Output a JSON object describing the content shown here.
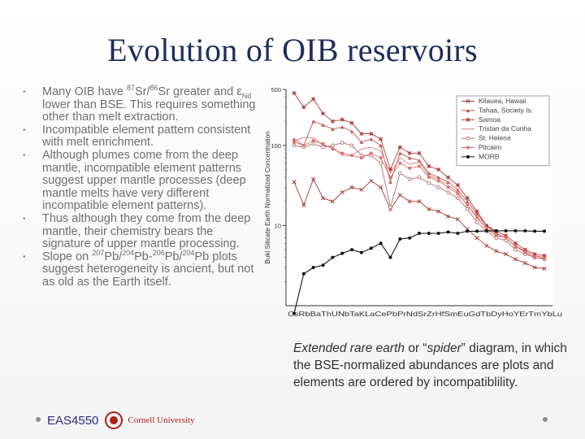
{
  "slide": {
    "title": "Evolution of OIB reservoirs",
    "bullets": [
      {
        "pre": "Many OIB have ",
        "sup1": "87",
        "mid1": "Sr/",
        "sup2": "86",
        "mid2": "Sr greater and ε",
        "sub": "Nd",
        "post": " lower than BSE. This requires something other than melt extraction."
      },
      {
        "text": "Incompatible element pattern consistent with melt enrichment."
      },
      {
        "text": "Although plumes come from the deep mantle, incompatible element patterns suggest upper mantle processes (deep mantle melts have very different incompatible element patterns)."
      },
      {
        "text": "Thus although they come from the deep mantle, their chemistry bears the signature of upper mantle processing."
      },
      {
        "pre": "Slope on ",
        "sup1": "207",
        "mid1": "Pb/",
        "sup2": "204",
        "mid2": "Pb-",
        "sup3": "206",
        "mid3": "Pb/",
        "sup4": "204",
        "post": "Pb plots suggest heterogeneity is ancient, but not as old as the Earth itself."
      }
    ],
    "caption": {
      "part1": "Extended rare earth",
      "part2": " or “",
      "part3": "spider",
      "part4": "” diagram, in which the BSE-normalized abundances are plots and elements are ordered by incompatiblility."
    },
    "footer": {
      "course": "EAS4550",
      "university": "Cornell University"
    }
  },
  "chart_data": {
    "type": "line",
    "ylabel": "Bukl Silicate Earth Normalized Concentration",
    "yscale": "log",
    "ylim": [
      1,
      500
    ],
    "yticks": [
      {
        "value": 500,
        "label": "500"
      },
      {
        "value": 100,
        "label": "100"
      },
      {
        "value": 10,
        "label": "10"
      }
    ],
    "categories": [
      "Cs",
      "Rb",
      "Ba",
      "Th",
      "U",
      "Nb",
      "Ta",
      "K",
      "La",
      "Ce",
      "Pb",
      "Pr",
      "Nd",
      "Sr",
      "Zr",
      "Hf",
      "Sm",
      "Eu",
      "Gd",
      "Tb",
      "Dy",
      "Ho",
      "Y",
      "Er",
      "Tm",
      "Yb",
      "Lu"
    ],
    "xtick_text": "CsRbBaThUNbTaKLaCePbPrNdSrZrHfSmEuGdTbDyHoYErTmYbLu",
    "legend_position": "top-right",
    "series": [
      {
        "name": "Kilauea, Hawaii",
        "color": "#a83838",
        "marker": "x",
        "values": [
          35,
          18,
          38,
          22,
          20,
          26,
          30,
          28,
          36,
          30,
          16,
          24,
          20,
          20,
          16,
          15,
          13,
          12,
          9,
          7,
          5.6,
          4.8,
          4.4,
          3.8,
          3.4,
          3.0,
          2.9
        ]
      },
      {
        "name": "Tahaa, Society Is.",
        "color": "#c45555",
        "marker": "triangle",
        "values": [
          120,
          100,
          200,
          180,
          160,
          170,
          150,
          110,
          120,
          100,
          35,
          80,
          70,
          65,
          45,
          40,
          35,
          28,
          20,
          14,
          10,
          8,
          7,
          5.5,
          4.8,
          4.2,
          4.0
        ]
      },
      {
        "name": "Samoa",
        "color": "#b23a3a",
        "marker": "asterisk",
        "values": [
          450,
          300,
          380,
          250,
          200,
          210,
          190,
          140,
          140,
          120,
          50,
          95,
          80,
          80,
          55,
          50,
          40,
          32,
          22,
          15,
          10,
          8.5,
          7.5,
          6,
          5,
          4.4,
          4.2
        ]
      },
      {
        "name": "Tristan da Cunha",
        "color": "#d48080",
        "marker": "line",
        "values": [
          115,
          125,
          125,
          100,
          95,
          75,
          75,
          90,
          95,
          85,
          45,
          70,
          58,
          62,
          42,
          38,
          32,
          26,
          18,
          13,
          9.5,
          7.8,
          7,
          5.6,
          4.8,
          4.2,
          4.0
        ]
      },
      {
        "name": "St. Helena",
        "color": "#b07070",
        "marker": "circle",
        "values": [
          100,
          95,
          105,
          95,
          100,
          108,
          100,
          75,
          75,
          60,
          17,
          45,
          38,
          40,
          34,
          30,
          26,
          22,
          16,
          11,
          8.5,
          7,
          6.5,
          5,
          4.4,
          4,
          3.8
        ]
      },
      {
        "name": "Pitcairn",
        "color": "#e07070",
        "marker": "square",
        "values": [
          110,
          100,
          115,
          105,
          90,
          80,
          75,
          70,
          80,
          70,
          40,
          60,
          52,
          55,
          40,
          36,
          30,
          25,
          18,
          12.5,
          9,
          7.5,
          7,
          5.5,
          4.6,
          4,
          3.9
        ]
      },
      {
        "name": "MORB",
        "color": "#111111",
        "marker": "dot",
        "values": [
          0.8,
          2.5,
          3,
          3.2,
          4,
          4.5,
          5,
          4.6,
          5.2,
          6,
          4,
          6.8,
          7,
          8,
          8,
          8,
          8.3,
          8,
          8.5,
          8.5,
          8.6,
          8.6,
          8.6,
          8.6,
          8.6,
          8.5,
          8.5
        ]
      }
    ]
  }
}
